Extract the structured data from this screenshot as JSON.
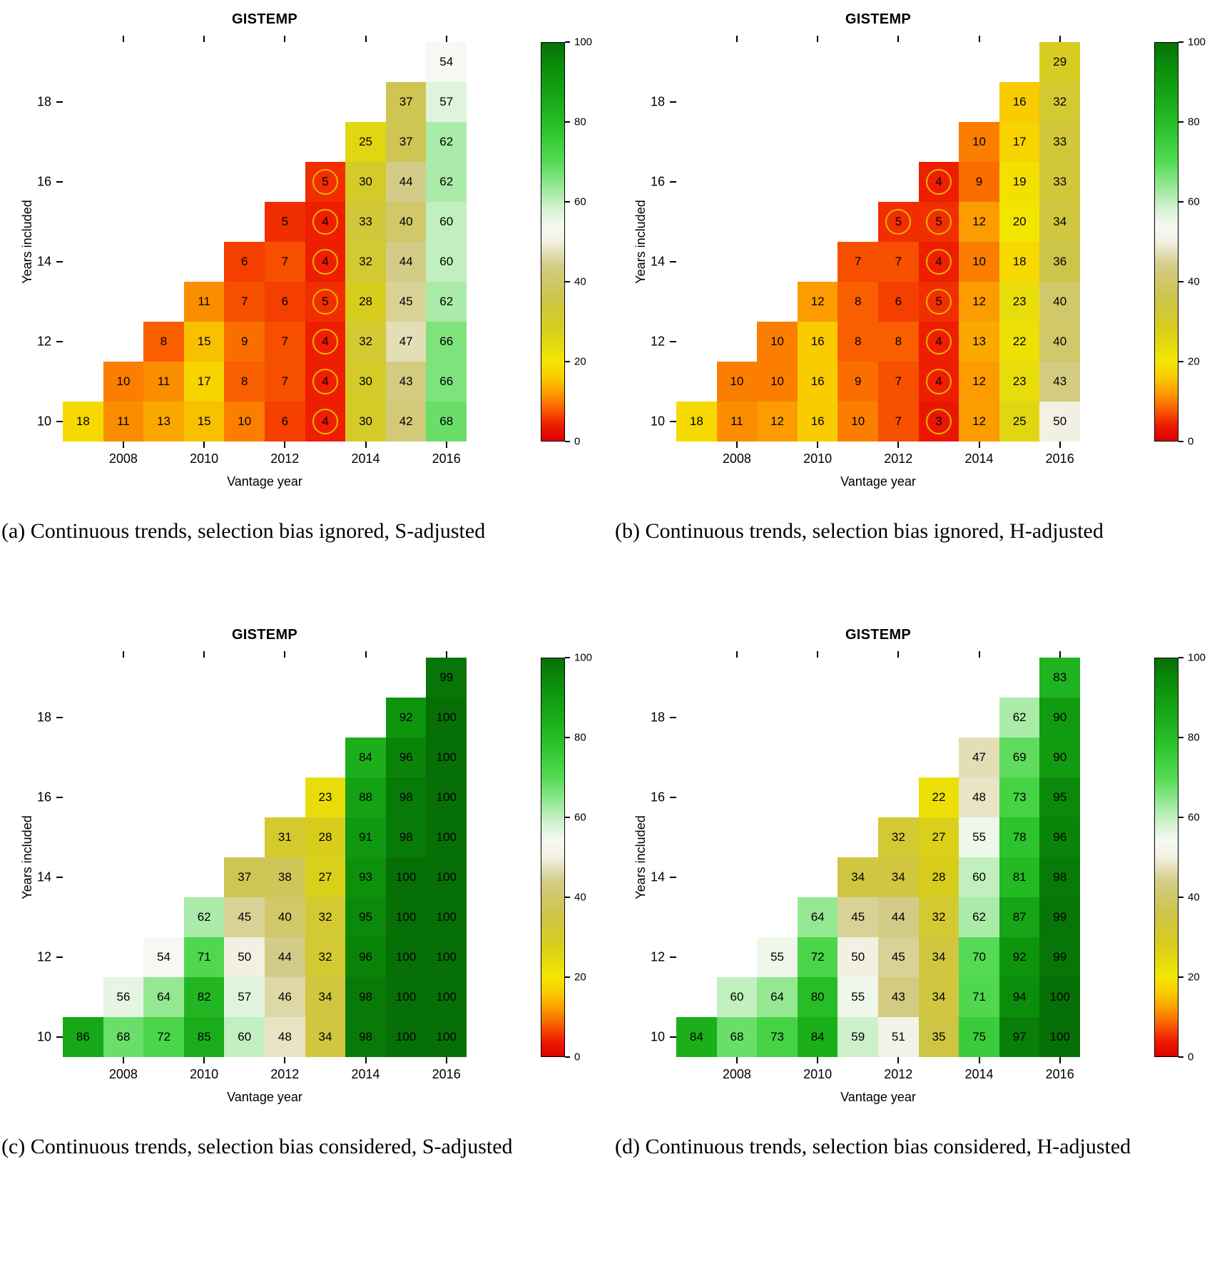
{
  "palette": {
    "description": "red-yellow-white-green heat colormap",
    "highlight_ring": "#f0b300",
    "axis_color": "#000000",
    "anchors": [
      [
        0,
        "#db0000"
      ],
      [
        4,
        "#ee1e00"
      ],
      [
        8,
        "#f95f00"
      ],
      [
        12,
        "#fc9c00"
      ],
      [
        16,
        "#f8cc00"
      ],
      [
        20,
        "#f2e600"
      ],
      [
        28,
        "#d8cd1c"
      ],
      [
        36,
        "#cdc44a"
      ],
      [
        44,
        "#d3cc88"
      ],
      [
        50,
        "#f2f0e2"
      ],
      [
        54,
        "#f6f9f2"
      ],
      [
        58,
        "#d8f2d6"
      ],
      [
        64,
        "#94e892"
      ],
      [
        70,
        "#54da54"
      ],
      [
        78,
        "#2cc42c"
      ],
      [
        86,
        "#17a817"
      ],
      [
        94,
        "#0b8e0b"
      ],
      [
        100,
        "#067006"
      ]
    ]
  },
  "chart_data": [
    {
      "type": "heatmap",
      "title": "GISTEMP",
      "xlabel": "Vantage year",
      "ylabel": "Years included",
      "caption": "(a) Continuous trends, selection bias ignored, S-adjusted",
      "x_start": 2007,
      "x_ticks": [
        2008,
        2010,
        2012,
        2014,
        2016
      ],
      "y_start": 10,
      "y_ticks": [
        10,
        12,
        14,
        16,
        18
      ],
      "zlim": [
        0,
        100
      ],
      "colorbar_ticks": [
        0,
        20,
        40,
        60,
        80,
        100
      ],
      "columns": [
        {
          "vantage": 2007,
          "values": [
            18
          ]
        },
        {
          "vantage": 2008,
          "values": [
            11,
            10
          ]
        },
        {
          "vantage": 2009,
          "values": [
            13,
            11,
            8
          ]
        },
        {
          "vantage": 2010,
          "values": [
            15,
            17,
            15,
            11
          ]
        },
        {
          "vantage": 2011,
          "values": [
            10,
            8,
            9,
            7,
            6
          ]
        },
        {
          "vantage": 2012,
          "values": [
            6,
            7,
            7,
            6,
            7,
            5
          ]
        },
        {
          "vantage": 2013,
          "values": [
            4,
            4,
            4,
            5,
            4,
            4,
            5
          ]
        },
        {
          "vantage": 2014,
          "values": [
            30,
            30,
            32,
            28,
            32,
            33,
            30,
            25
          ]
        },
        {
          "vantage": 2015,
          "values": [
            42,
            43,
            47,
            45,
            44,
            40,
            44,
            37,
            37
          ]
        },
        {
          "vantage": 2016,
          "values": [
            68,
            66,
            66,
            62,
            60,
            60,
            62,
            62,
            57,
            54
          ]
        }
      ],
      "circled": [
        [
          2013,
          10
        ],
        [
          2013,
          11
        ],
        [
          2013,
          12
        ],
        [
          2013,
          13
        ],
        [
          2013,
          14
        ],
        [
          2013,
          15
        ],
        [
          2013,
          16
        ]
      ]
    },
    {
      "type": "heatmap",
      "title": "GISTEMP",
      "xlabel": "Vantage year",
      "ylabel": "Years included",
      "caption": "(b) Continuous trends, selection bias ignored, H-adjusted",
      "x_start": 2007,
      "x_ticks": [
        2008,
        2010,
        2012,
        2014,
        2016
      ],
      "y_start": 10,
      "y_ticks": [
        10,
        12,
        14,
        16,
        18
      ],
      "zlim": [
        0,
        100
      ],
      "colorbar_ticks": [
        0,
        20,
        40,
        60,
        80,
        100
      ],
      "columns": [
        {
          "vantage": 2007,
          "values": [
            18
          ]
        },
        {
          "vantage": 2008,
          "values": [
            11,
            10
          ]
        },
        {
          "vantage": 2009,
          "values": [
            12,
            10,
            10
          ]
        },
        {
          "vantage": 2010,
          "values": [
            16,
            16,
            16,
            12
          ]
        },
        {
          "vantage": 2011,
          "values": [
            10,
            9,
            8,
            8,
            7
          ]
        },
        {
          "vantage": 2012,
          "values": [
            7,
            7,
            8,
            6,
            7,
            5
          ]
        },
        {
          "vantage": 2013,
          "values": [
            3,
            4,
            4,
            5,
            4,
            5,
            4
          ]
        },
        {
          "vantage": 2014,
          "values": [
            12,
            12,
            13,
            12,
            10,
            12,
            9,
            10
          ]
        },
        {
          "vantage": 2015,
          "values": [
            25,
            23,
            22,
            23,
            18,
            20,
            19,
            17,
            16
          ]
        },
        {
          "vantage": 2016,
          "values": [
            50,
            43,
            40,
            40,
            36,
            34,
            33,
            33,
            32,
            29
          ]
        }
      ],
      "circled": [
        [
          2012,
          15
        ],
        [
          2013,
          10
        ],
        [
          2013,
          11
        ],
        [
          2013,
          12
        ],
        [
          2013,
          13
        ],
        [
          2013,
          14
        ],
        [
          2013,
          15
        ],
        [
          2013,
          16
        ]
      ]
    },
    {
      "type": "heatmap",
      "title": "GISTEMP",
      "xlabel": "Vantage year",
      "ylabel": "Years included",
      "caption": "(c) Continuous trends, selection bias considered, S-adjusted",
      "x_start": 2007,
      "x_ticks": [
        2008,
        2010,
        2012,
        2014,
        2016
      ],
      "y_start": 10,
      "y_ticks": [
        10,
        12,
        14,
        16,
        18
      ],
      "zlim": [
        0,
        100
      ],
      "colorbar_ticks": [
        0,
        20,
        40,
        60,
        80,
        100
      ],
      "columns": [
        {
          "vantage": 2007,
          "values": [
            86
          ]
        },
        {
          "vantage": 2008,
          "values": [
            68,
            56
          ]
        },
        {
          "vantage": 2009,
          "values": [
            72,
            64,
            54
          ]
        },
        {
          "vantage": 2010,
          "values": [
            85,
            82,
            71,
            62
          ]
        },
        {
          "vantage": 2011,
          "values": [
            60,
            57,
            50,
            45,
            37
          ]
        },
        {
          "vantage": 2012,
          "values": [
            48,
            46,
            44,
            40,
            38,
            31
          ]
        },
        {
          "vantage": 2013,
          "values": [
            34,
            34,
            32,
            32,
            27,
            28,
            23
          ]
        },
        {
          "vantage": 2014,
          "values": [
            98,
            98,
            96,
            95,
            93,
            91,
            88,
            84
          ]
        },
        {
          "vantage": 2015,
          "values": [
            100,
            100,
            100,
            100,
            100,
            98,
            98,
            96,
            92
          ]
        },
        {
          "vantage": 2016,
          "values": [
            100,
            100,
            100,
            100,
            100,
            100,
            100,
            100,
            100,
            99
          ]
        }
      ],
      "circled": []
    },
    {
      "type": "heatmap",
      "title": "GISTEMP",
      "xlabel": "Vantage year",
      "ylabel": "Years included",
      "caption": "(d) Continuous trends, selection bias considered, H-adjusted",
      "x_start": 2007,
      "x_ticks": [
        2008,
        2010,
        2012,
        2014,
        2016
      ],
      "y_start": 10,
      "y_ticks": [
        10,
        12,
        14,
        16,
        18
      ],
      "zlim": [
        0,
        100
      ],
      "colorbar_ticks": [
        0,
        20,
        40,
        60,
        80,
        100
      ],
      "columns": [
        {
          "vantage": 2007,
          "values": [
            84
          ]
        },
        {
          "vantage": 2008,
          "values": [
            68,
            60
          ]
        },
        {
          "vantage": 2009,
          "values": [
            73,
            64,
            55
          ]
        },
        {
          "vantage": 2010,
          "values": [
            84,
            80,
            72,
            64
          ]
        },
        {
          "vantage": 2011,
          "values": [
            59,
            55,
            50,
            45,
            34
          ]
        },
        {
          "vantage": 2012,
          "values": [
            51,
            43,
            45,
            44,
            34,
            32
          ]
        },
        {
          "vantage": 2013,
          "values": [
            35,
            34,
            34,
            32,
            28,
            27,
            22
          ]
        },
        {
          "vantage": 2014,
          "values": [
            75,
            71,
            70,
            62,
            60,
            55,
            48,
            47
          ]
        },
        {
          "vantage": 2015,
          "values": [
            97,
            94,
            92,
            87,
            81,
            78,
            73,
            69,
            62
          ]
        },
        {
          "vantage": 2016,
          "values": [
            100,
            100,
            99,
            99,
            98,
            96,
            95,
            90,
            90,
            83
          ]
        }
      ],
      "circled": []
    }
  ]
}
